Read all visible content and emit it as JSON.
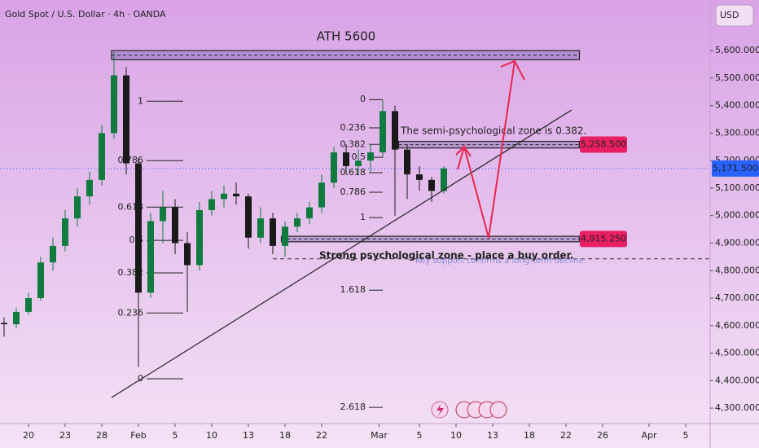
{
  "chart_data": {
    "type": "candlestick",
    "title": "Gold Spot / U.S. Dollar · 4h · OANDA",
    "currency": "USD",
    "x": [
      -2,
      -1,
      0,
      1,
      2,
      3,
      4,
      5,
      6,
      7,
      8,
      9,
      10,
      11,
      12,
      13,
      14,
      15,
      16,
      17,
      18,
      19,
      20,
      21,
      22,
      23,
      24,
      25,
      26,
      27,
      28,
      29,
      30,
      31,
      32,
      33,
      34
    ],
    "open": [
      4610,
      4605,
      4650,
      4700,
      4830,
      4890,
      4990,
      5070,
      5130,
      5300,
      5510,
      5190,
      4720,
      4980,
      5030,
      4900,
      4820,
      5020,
      5060,
      5080,
      5070,
      4920,
      4990,
      4890,
      4960,
      4990,
      5030,
      5120,
      5230,
      5180,
      5200,
      5230,
      5380,
      5240,
      5150,
      5130,
      5090
    ],
    "high": [
      4630,
      4665,
      4720,
      4850,
      4920,
      5020,
      5100,
      5160,
      5330,
      5595,
      5540,
      5210,
      5010,
      5090,
      5060,
      4940,
      5050,
      5090,
      5110,
      5120,
      5080,
      5030,
      5010,
      4980,
      5010,
      5050,
      5150,
      5250,
      5260,
      5240,
      5260,
      5420,
      5400,
      5260,
      5180,
      5140,
      5180
    ],
    "low": [
      4560,
      4590,
      4640,
      4690,
      4800,
      4870,
      4960,
      5040,
      5110,
      5280,
      5150,
      4450,
      4700,
      4900,
      4860,
      4650,
      4800,
      5000,
      5030,
      5040,
      4880,
      4900,
      4860,
      4850,
      4940,
      4970,
      5010,
      5100,
      5150,
      5150,
      5160,
      5210,
      5000,
      5060,
      5090,
      5050,
      5080
    ],
    "close": [
      4605,
      4650,
      4700,
      4830,
      4890,
      4990,
      5070,
      5130,
      5300,
      5510,
      5190,
      4720,
      4980,
      5030,
      4900,
      4820,
      5020,
      5060,
      5080,
      5070,
      4920,
      4990,
      4890,
      4960,
      4990,
      5030,
      5120,
      5230,
      5180,
      5200,
      5230,
      5380,
      5240,
      5150,
      5130,
      5090,
      5171.5
    ],
    "up_color": "#0f7b3f",
    "down_color": "#1a1a1a",
    "xlim": [
      -2.333,
      55.8
    ],
    "xticks": [
      {
        "value": 0,
        "label": "20"
      },
      {
        "value": 3,
        "label": "23"
      },
      {
        "value": 6,
        "label": "28"
      },
      {
        "value": 9,
        "label": "Feb"
      },
      {
        "value": 12,
        "label": "5"
      },
      {
        "value": 15,
        "label": "10"
      },
      {
        "value": 18,
        "label": "13"
      },
      {
        "value": 21,
        "label": "18"
      },
      {
        "value": 24,
        "label": "22"
      },
      {
        "value": 28.7,
        "label": "Mar"
      },
      {
        "value": 32,
        "label": "5"
      },
      {
        "value": 35,
        "label": "10"
      },
      {
        "value": 38,
        "label": "13"
      },
      {
        "value": 41,
        "label": "18"
      },
      {
        "value": 44,
        "label": "22"
      },
      {
        "value": 47,
        "label": "26"
      },
      {
        "value": 50.8,
        "label": "Apr"
      },
      {
        "value": 53.8,
        "label": "5"
      }
    ],
    "ylim": [
      4244,
      5784
    ],
    "yticks": [
      {
        "value": 5600,
        "label": "5,600.000"
      },
      {
        "value": 5500,
        "label": "5,500.000"
      },
      {
        "value": 5400,
        "label": "5,400.000"
      },
      {
        "value": 5300,
        "label": "5,300.000"
      },
      {
        "value": 5200,
        "label": "5,200.000"
      },
      {
        "value": 5100,
        "label": "5,100.000"
      },
      {
        "value": 5000,
        "label": "5,000.000"
      },
      {
        "value": 4900,
        "label": "4,900.000"
      },
      {
        "value": 4800,
        "label": "4,800.000"
      },
      {
        "value": 4700,
        "label": "4,700.000"
      },
      {
        "value": 4600,
        "label": "4,600.000"
      },
      {
        "value": 4500,
        "label": "4,500.000"
      },
      {
        "value": 4400,
        "label": "4,400.000"
      },
      {
        "value": 4300,
        "label": "4,300.000"
      }
    ],
    "fib_left": [
      {
        "level": 1,
        "price": 5416
      },
      {
        "level": 0.786,
        "price": 5200
      },
      {
        "level": 0.618,
        "price": 5031
      },
      {
        "level": 0.5,
        "price": 4910
      },
      {
        "level": 0.382,
        "price": 4792
      },
      {
        "level": 0.236,
        "price": 4646
      },
      {
        "level": 0,
        "price": 4407
      }
    ],
    "fib_right": [
      {
        "level": 0,
        "price": 5422
      },
      {
        "level": 0.236,
        "price": 5319
      },
      {
        "level": 0.382,
        "price": 5259
      },
      {
        "level": 0.5,
        "price": 5212
      },
      {
        "level": 0.618,
        "price": 5156
      },
      {
        "level": 0.786,
        "price": 5085
      },
      {
        "level": 1,
        "price": 4993
      },
      {
        "level": 1.618,
        "price": 4729
      },
      {
        "level": 2.618,
        "price": 4303
      }
    ],
    "zones": [
      {
        "top": 5600,
        "bottom": 5567,
        "from": 6.8,
        "to": 45.1
      },
      {
        "top": 5270,
        "bottom": 5246,
        "from": 30.3,
        "to": 45.1
      },
      {
        "top": 4925,
        "bottom": 4905,
        "from": 20.7,
        "to": 45.1
      }
    ],
    "price_tags": {
      "values": [
        5258.5,
        4915.25
      ],
      "value_labels": [
        "5,258.500",
        "4,915.250"
      ],
      "color": "#e91e63"
    },
    "last_price": {
      "value": 5171.5,
      "label": "5,171.500",
      "color": "#2962ff"
    },
    "support_level": 4843,
    "annotations": {
      "ath": "ATH 5600",
      "semi": "The semi-psychological zone is 0.382.",
      "strong": "Strong psychological zone - place a buy order.",
      "key": "Key support confirms a long-term decline."
    }
  }
}
